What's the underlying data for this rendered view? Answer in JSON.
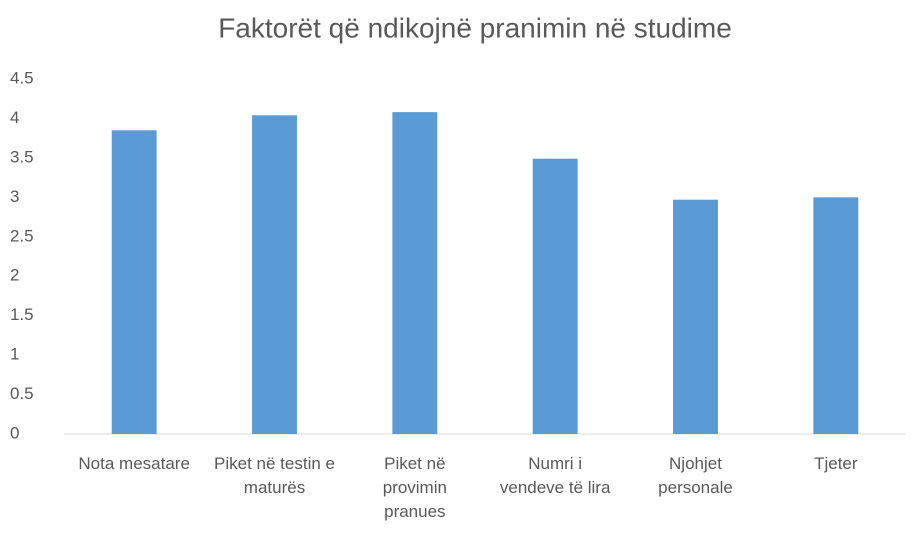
{
  "chart_data": {
    "type": "bar",
    "title": "Faktorët që ndikojnë pranimin në studime",
    "categories": [
      "Nota mesatare",
      "Piket në testin e maturës",
      "Piket në provimin pranues",
      "Numri i vendeve të lira",
      "Njohjet personale",
      "Tjeter"
    ],
    "values": [
      3.85,
      4.04,
      4.08,
      3.49,
      2.97,
      3.0
    ],
    "color": "#5b9bd5",
    "ylim": [
      0,
      4.5
    ],
    "yticks": [
      0,
      0.5,
      1,
      1.5,
      2,
      2.5,
      3,
      3.5,
      4,
      4.5
    ],
    "grid": false
  }
}
